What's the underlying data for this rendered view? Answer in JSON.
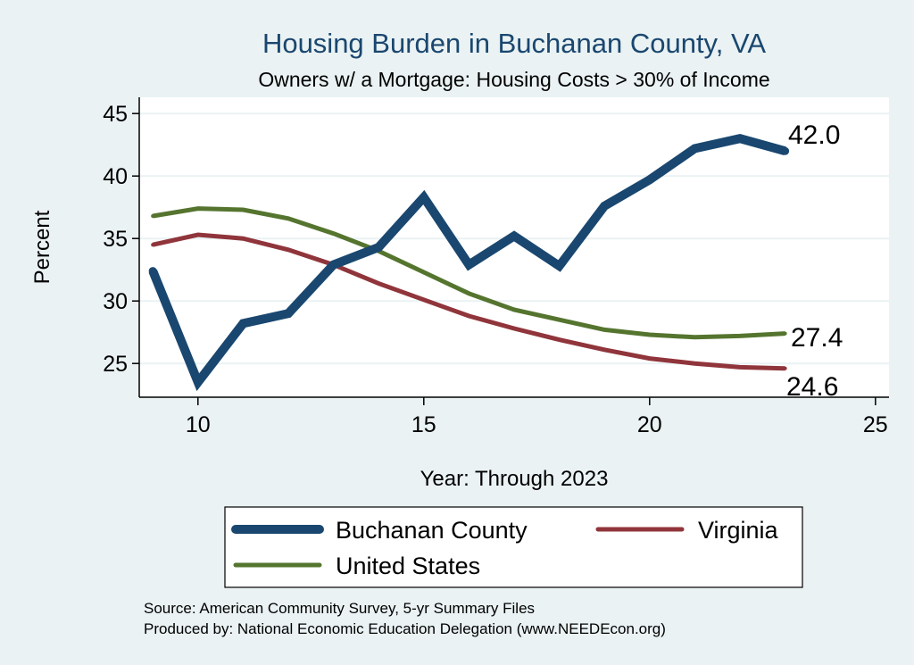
{
  "chart_data": {
    "type": "line",
    "title": "Housing Burden in Buchanan County, VA",
    "subtitle": "Owners w/ a Mortgage: Housing Costs > 30% of Income",
    "xlabel": "Year: Through 2023",
    "ylabel": "Percent",
    "xlim": [
      8.7,
      25.3
    ],
    "ylim": [
      22.3,
      46.3
    ],
    "xticks": [
      10,
      15,
      20,
      25
    ],
    "yticks": [
      25,
      30,
      35,
      40,
      45
    ],
    "grid": true,
    "legend_position": "bottom",
    "series": [
      {
        "name": "Buchanan County",
        "color": "#1a476f",
        "x": [
          9,
          10,
          11,
          12,
          13,
          14,
          15,
          16,
          17,
          18,
          19,
          20,
          21,
          22,
          23
        ],
        "values": [
          32.4,
          23.5,
          28.2,
          29.0,
          32.9,
          34.3,
          38.3,
          32.9,
          35.2,
          32.8,
          37.6,
          39.7,
          42.2,
          43.0,
          42.0
        ],
        "end_label": "42.0"
      },
      {
        "name": "Virginia",
        "color": "#90353b",
        "x": [
          9,
          10,
          11,
          12,
          13,
          14,
          15,
          16,
          17,
          18,
          19,
          20,
          21,
          22,
          23
        ],
        "values": [
          34.5,
          35.3,
          35.0,
          34.1,
          32.9,
          31.4,
          30.1,
          28.8,
          27.8,
          26.9,
          26.1,
          25.4,
          25.0,
          24.7,
          24.6
        ],
        "end_label": "24.6"
      },
      {
        "name": "United States",
        "color": "#55752f",
        "x": [
          9,
          10,
          11,
          12,
          13,
          14,
          15,
          16,
          17,
          18,
          19,
          20,
          21,
          22,
          23
        ],
        "values": [
          36.8,
          37.4,
          37.3,
          36.6,
          35.4,
          34.0,
          32.3,
          30.6,
          29.3,
          28.5,
          27.7,
          27.3,
          27.1,
          27.2,
          27.4
        ],
        "end_label": "27.4"
      }
    ]
  },
  "footer": {
    "source": "Source: American Community Survey, 5-yr Summary Files",
    "producer": "Produced by: National Economic Education Delegation (www.NEEDEcon.org)"
  }
}
